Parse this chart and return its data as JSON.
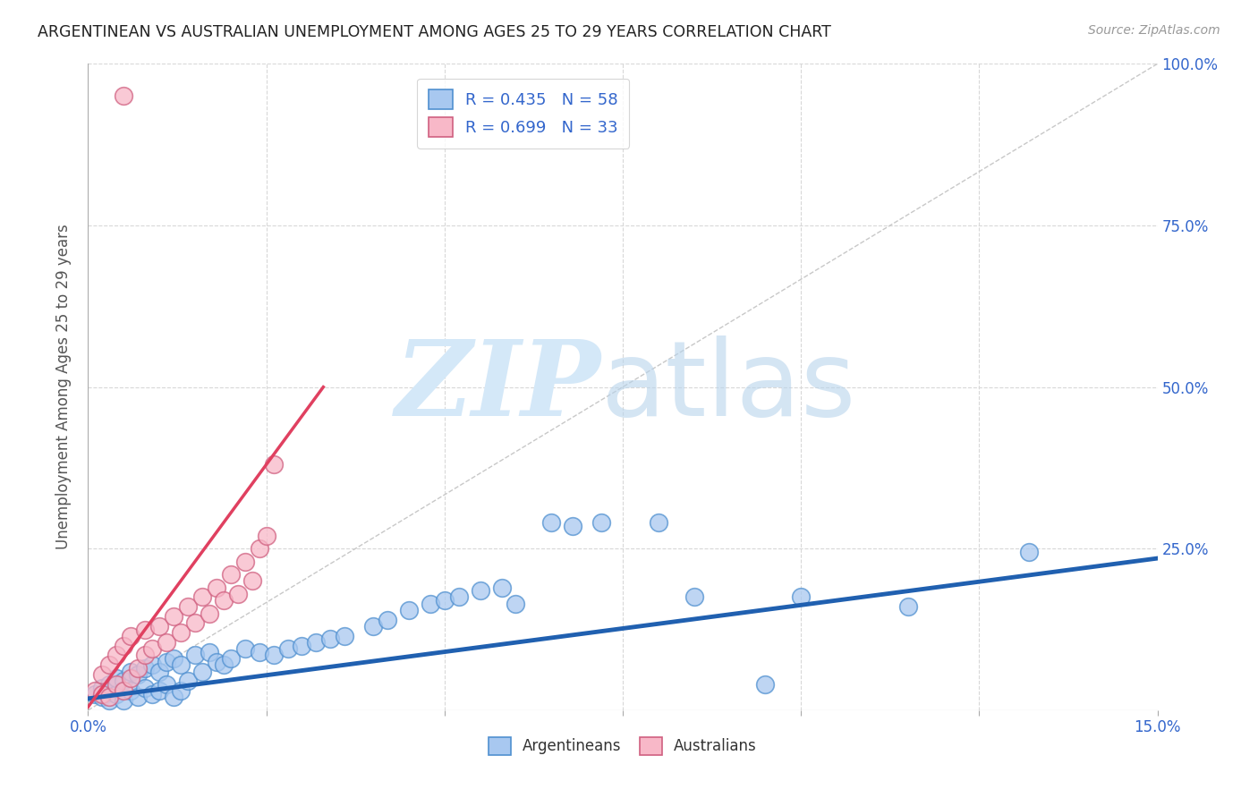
{
  "title": "ARGENTINEAN VS AUSTRALIAN UNEMPLOYMENT AMONG AGES 25 TO 29 YEARS CORRELATION CHART",
  "source": "Source: ZipAtlas.com",
  "ylabel": "Unemployment Among Ages 25 to 29 years",
  "xlim": [
    0.0,
    0.15
  ],
  "ylim": [
    0.0,
    1.0
  ],
  "blue_color": "#a8c8f0",
  "blue_edge_color": "#5090d0",
  "pink_color": "#f8b8c8",
  "pink_edge_color": "#d06080",
  "blue_line_color": "#2060b0",
  "pink_line_color": "#e04060",
  "diagonal_color": "#c8c8c8",
  "title_color": "#222222",
  "source_color": "#999999",
  "tick_label_color": "#3366cc",
  "ylabel_color": "#555555",
  "background_color": "#ffffff",
  "blue_trend_x0": 0.0,
  "blue_trend_y0": 0.018,
  "blue_trend_x1": 0.15,
  "blue_trend_y1": 0.235,
  "pink_trend_x0": 0.0,
  "pink_trend_y0": 0.005,
  "pink_trend_x1": 0.033,
  "pink_trend_y1": 0.5,
  "arg_x": [
    0.001,
    0.002,
    0.002,
    0.003,
    0.003,
    0.004,
    0.004,
    0.005,
    0.005,
    0.006,
    0.006,
    0.007,
    0.007,
    0.008,
    0.008,
    0.009,
    0.009,
    0.01,
    0.01,
    0.011,
    0.011,
    0.012,
    0.012,
    0.013,
    0.013,
    0.014,
    0.015,
    0.016,
    0.017,
    0.018,
    0.019,
    0.02,
    0.022,
    0.024,
    0.026,
    0.028,
    0.03,
    0.032,
    0.034,
    0.036,
    0.04,
    0.042,
    0.045,
    0.048,
    0.05,
    0.052,
    0.055,
    0.058,
    0.06,
    0.065,
    0.068,
    0.072,
    0.08,
    0.085,
    0.095,
    0.1,
    0.115,
    0.132
  ],
  "arg_y": [
    0.025,
    0.02,
    0.035,
    0.015,
    0.04,
    0.025,
    0.05,
    0.015,
    0.045,
    0.03,
    0.06,
    0.02,
    0.055,
    0.035,
    0.065,
    0.025,
    0.07,
    0.03,
    0.06,
    0.04,
    0.075,
    0.02,
    0.08,
    0.03,
    0.07,
    0.045,
    0.085,
    0.06,
    0.09,
    0.075,
    0.07,
    0.08,
    0.095,
    0.09,
    0.085,
    0.095,
    0.1,
    0.105,
    0.11,
    0.115,
    0.13,
    0.14,
    0.155,
    0.165,
    0.17,
    0.175,
    0.185,
    0.19,
    0.165,
    0.29,
    0.285,
    0.29,
    0.29,
    0.175,
    0.04,
    0.175,
    0.16,
    0.245
  ],
  "aus_x": [
    0.001,
    0.002,
    0.002,
    0.003,
    0.003,
    0.004,
    0.004,
    0.005,
    0.005,
    0.006,
    0.006,
    0.007,
    0.008,
    0.008,
    0.009,
    0.01,
    0.011,
    0.012,
    0.013,
    0.014,
    0.015,
    0.016,
    0.017,
    0.018,
    0.019,
    0.02,
    0.021,
    0.022,
    0.023,
    0.024,
    0.025,
    0.026,
    0.005
  ],
  "aus_y": [
    0.03,
    0.025,
    0.055,
    0.02,
    0.07,
    0.04,
    0.085,
    0.03,
    0.1,
    0.05,
    0.115,
    0.065,
    0.085,
    0.125,
    0.095,
    0.13,
    0.105,
    0.145,
    0.12,
    0.16,
    0.135,
    0.175,
    0.15,
    0.19,
    0.17,
    0.21,
    0.18,
    0.23,
    0.2,
    0.25,
    0.27,
    0.38,
    0.95
  ]
}
